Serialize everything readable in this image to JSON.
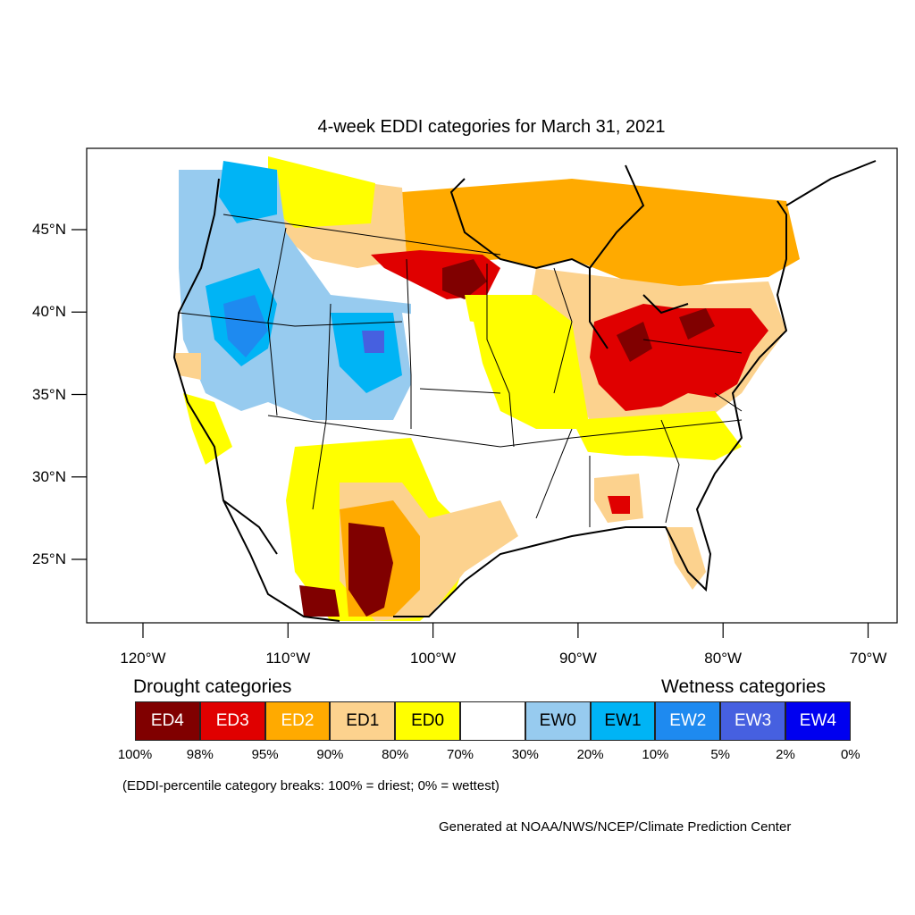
{
  "title": "4-week EDDI categories for March 31, 2021",
  "map": {
    "lat_labels": [
      "45°N",
      "40°N",
      "35°N",
      "30°N",
      "25°N"
    ],
    "lon_labels": [
      "120°W",
      "110°W",
      "100°W",
      "90°W",
      "80°W",
      "70°W"
    ],
    "lat_values": [
      45,
      40,
      35,
      30,
      25
    ],
    "lon_values": [
      -120,
      -110,
      -100,
      -90,
      -80,
      -70
    ]
  },
  "legend": {
    "drought_heading": "Drought categories",
    "wetness_heading": "Wetness categories",
    "categories": [
      {
        "label": "ED4",
        "color": "#800000",
        "text_color": "#ffffff"
      },
      {
        "label": "ED3",
        "color": "#e00000",
        "text_color": "#ffffff"
      },
      {
        "label": "ED2",
        "color": "#ffaa00",
        "text_color": "#ffffff"
      },
      {
        "label": "ED1",
        "color": "#fcd28e",
        "text_color": "#000000"
      },
      {
        "label": "ED0",
        "color": "#ffff00",
        "text_color": "#000000"
      },
      {
        "label": "",
        "color": "#ffffff",
        "text_color": "#000000"
      },
      {
        "label": "EW0",
        "color": "#97cbef",
        "text_color": "#000000"
      },
      {
        "label": "EW1",
        "color": "#00b4f5",
        "text_color": "#000000"
      },
      {
        "label": "EW2",
        "color": "#1e8af0",
        "text_color": "#ffffff"
      },
      {
        "label": "EW3",
        "color": "#4660e0",
        "text_color": "#ffffff"
      },
      {
        "label": "EW4",
        "color": "#0000f0",
        "text_color": "#ffffff"
      }
    ],
    "breaks": [
      "100%",
      "98%",
      "95%",
      "90%",
      "80%",
      "70%",
      "30%",
      "20%",
      "10%",
      "5%",
      "2%",
      "0%"
    ]
  },
  "note": "(EDDI-percentile category breaks: 100% = driest; 0% = wettest)",
  "credit": "Generated at NOAA/NWS/NCEP/Climate Prediction Center"
}
